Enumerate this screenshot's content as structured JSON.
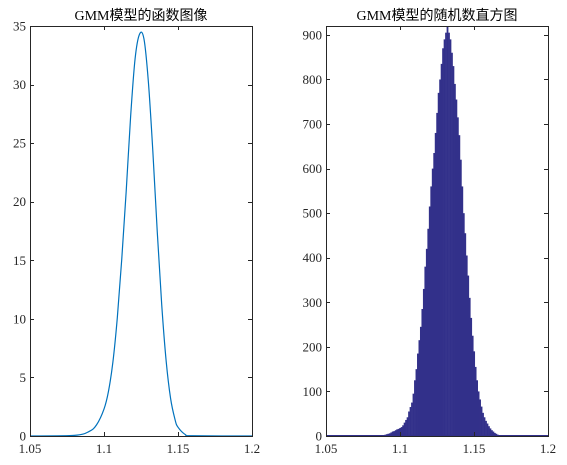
{
  "chart_data": [
    {
      "type": "line",
      "title": "GMM模型的函数图像",
      "xlabel": "",
      "ylabel": "",
      "xlim": [
        1.05,
        1.2
      ],
      "ylim": [
        0,
        35
      ],
      "xticks": [
        1.05,
        1.1,
        1.15,
        1.2
      ],
      "xtick_labels": [
        "1.05",
        "1.1",
        "1.15",
        "1.2"
      ],
      "yticks": [
        0,
        5,
        10,
        15,
        20,
        25,
        30,
        35
      ],
      "ytick_labels": [
        "0",
        "5",
        "10",
        "15",
        "20",
        "25",
        "30",
        "35"
      ],
      "grid": false,
      "series": [
        {
          "color": "#0072BD",
          "x": [
            1.05,
            1.08,
            1.09,
            1.095,
            1.1,
            1.103,
            1.106,
            1.109,
            1.112,
            1.115,
            1.118,
            1.121,
            1.124,
            1.127,
            1.13,
            1.133,
            1.136,
            1.139,
            1.142,
            1.145,
            1.148,
            1.15,
            1.155,
            1.16,
            1.2
          ],
          "y": [
            0,
            0.05,
            0.39,
            0.96,
            2.3,
            3.8,
            6.3,
            10.1,
            15.1,
            20.9,
            27.3,
            32.2,
            34.3,
            33.9,
            30.2,
            24.3,
            17.4,
            11.2,
            6.4,
            3.2,
            1.4,
            0.75,
            0.12,
            0.02,
            0
          ]
        }
      ]
    },
    {
      "type": "bar",
      "title": "GMM模型的随机数直方图",
      "xlabel": "",
      "ylabel": "",
      "xlim": [
        1.05,
        1.2
      ],
      "ylim": [
        0,
        920
      ],
      "xticks": [
        1.05,
        1.1,
        1.15,
        1.2
      ],
      "xtick_labels": [
        "1.05",
        "1.1",
        "1.15",
        "1.2"
      ],
      "yticks": [
        0,
        100,
        200,
        300,
        400,
        500,
        600,
        700,
        800,
        900
      ],
      "ytick_labels": [
        "0",
        "100",
        "200",
        "300",
        "400",
        "500",
        "600",
        "700",
        "800",
        "900"
      ],
      "grid": false,
      "bar_color": "#32308A",
      "bin_start": 1.0875,
      "bin_width": 0.001,
      "values": [
        1,
        2,
        3,
        4,
        5,
        6,
        8,
        10,
        11,
        13,
        15,
        16,
        18,
        20,
        24,
        30,
        36,
        42,
        55,
        65,
        75,
        95,
        125,
        150,
        185,
        215,
        245,
        285,
        330,
        380,
        420,
        465,
        515,
        560,
        600,
        635,
        680,
        725,
        770,
        800,
        835,
        870,
        890,
        905,
        920,
        905,
        890,
        860,
        830,
        790,
        755,
        715,
        675,
        620,
        560,
        500,
        455,
        405,
        360,
        310,
        265,
        225,
        190,
        155,
        125,
        100,
        82,
        66,
        52,
        42,
        34,
        28,
        22,
        17,
        13,
        10,
        7,
        5,
        3,
        2,
        1
      ]
    }
  ]
}
